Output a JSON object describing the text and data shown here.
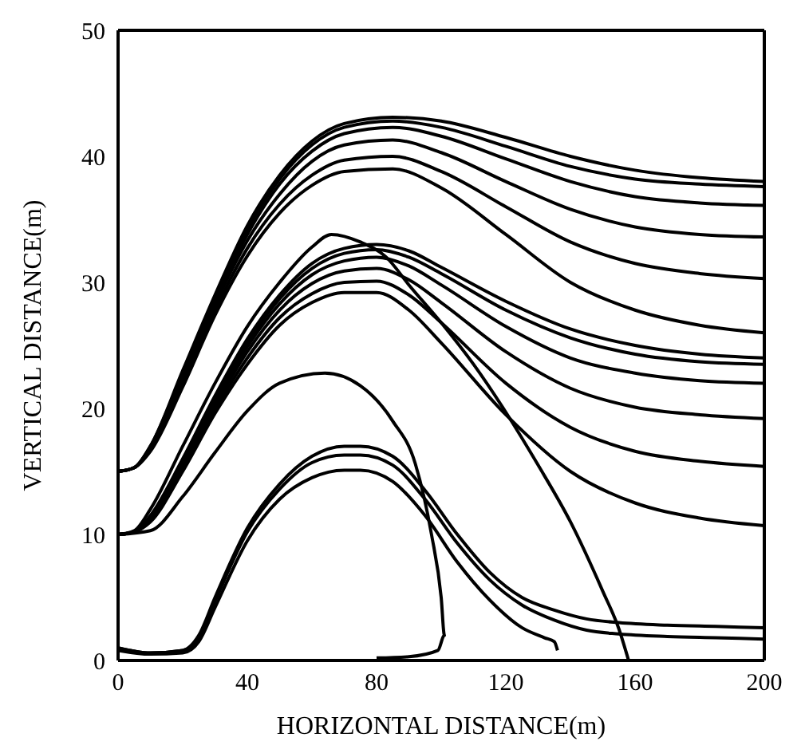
{
  "chart_data": {
    "type": "line",
    "xlabel": "HORIZONTAL DISTANCE(m)",
    "ylabel": "VERTICAL DISTANCE(m)",
    "xlim": [
      0,
      200
    ],
    "xticks": [
      0,
      40,
      80,
      120,
      160,
      200
    ],
    "ylim": [
      0,
      50
    ],
    "yticks": [
      0,
      10,
      20,
      30,
      40,
      50
    ],
    "grid": false,
    "marker": "none",
    "line_style": "solid",
    "series": [
      {
        "color": "#000000",
        "x": [
          0,
          5,
          10,
          20,
          30,
          40,
          50,
          60,
          70,
          85,
          100,
          120,
          140,
          160,
          180,
          200
        ],
        "values": [
          15,
          15.3,
          17,
          23,
          29,
          34.5,
          38.5,
          41.2,
          42.6,
          43.1,
          42.8,
          41.5,
          40.0,
          38.9,
          38.3,
          38.0
        ]
      },
      {
        "color": "#000000",
        "x": [
          0,
          5,
          10,
          20,
          30,
          40,
          50,
          60,
          70,
          85,
          100,
          120,
          140,
          160,
          180,
          200
        ],
        "values": [
          15,
          15.3,
          17,
          22.8,
          28.8,
          34.2,
          38.2,
          40.9,
          42.3,
          42.8,
          42.3,
          40.8,
          39.2,
          38.2,
          37.8,
          37.6
        ]
      },
      {
        "color": "#000000",
        "x": [
          0,
          5,
          10,
          20,
          30,
          40,
          50,
          60,
          70,
          85,
          100,
          120,
          140,
          160,
          180,
          200
        ],
        "values": [
          15,
          15.3,
          16.9,
          22.5,
          28.5,
          33.8,
          37.8,
          40.4,
          41.8,
          42.3,
          41.6,
          39.8,
          38.0,
          36.8,
          36.3,
          36.1
        ]
      },
      {
        "color": "#000000",
        "x": [
          0,
          5,
          10,
          20,
          30,
          40,
          50,
          60,
          70,
          85,
          100,
          120,
          140,
          160,
          180,
          200
        ],
        "values": [
          15,
          15.3,
          16.8,
          22.2,
          28.2,
          33.3,
          37.0,
          39.6,
          40.9,
          41.3,
          40.3,
          38.0,
          35.8,
          34.4,
          33.8,
          33.6
        ]
      },
      {
        "color": "#000000",
        "x": [
          0,
          5,
          10,
          20,
          30,
          40,
          50,
          60,
          70,
          85,
          100,
          120,
          140,
          160,
          180,
          200
        ],
        "values": [
          15,
          15.3,
          16.7,
          22,
          27.8,
          32.7,
          36.2,
          38.5,
          39.7,
          40.0,
          38.8,
          36.0,
          33.2,
          31.5,
          30.7,
          30.3
        ]
      },
      {
        "color": "#000000",
        "x": [
          0,
          5,
          10,
          20,
          30,
          40,
          50,
          60,
          70,
          85,
          100,
          120,
          140,
          160,
          180,
          200
        ],
        "values": [
          15,
          15.3,
          16.6,
          21.7,
          27.4,
          32.1,
          35.5,
          37.7,
          38.8,
          39.0,
          37.5,
          33.8,
          30.0,
          27.8,
          26.6,
          26.0
        ]
      },
      {
        "color": "#000000",
        "x": [
          0,
          5,
          10,
          20,
          30,
          40,
          50,
          60,
          70,
          80,
          90,
          100,
          120,
          140,
          160,
          180,
          200
        ],
        "values": [
          10,
          10.2,
          11.5,
          16,
          21,
          25.5,
          29,
          31.5,
          32.7,
          33.0,
          32.5,
          31.2,
          28.5,
          26.3,
          25,
          24.3,
          24.0
        ]
      },
      {
        "color": "#000000",
        "x": [
          0,
          5,
          10,
          20,
          30,
          40,
          50,
          60,
          70,
          80,
          90,
          100,
          120,
          140,
          160,
          180,
          200
        ],
        "values": [
          10,
          10.2,
          11.4,
          15.8,
          20.8,
          25.2,
          28.7,
          31.1,
          32.3,
          32.6,
          32.0,
          30.7,
          27.8,
          25.6,
          24.3,
          23.7,
          23.5
        ]
      },
      {
        "color": "#000000",
        "x": [
          0,
          5,
          10,
          20,
          30,
          40,
          50,
          60,
          70,
          80,
          90,
          100,
          120,
          140,
          160,
          180,
          200
        ],
        "values": [
          10,
          10.2,
          11.3,
          15.6,
          20.5,
          24.9,
          28.3,
          30.6,
          31.7,
          32.0,
          31.3,
          29.8,
          26.5,
          24.0,
          22.8,
          22.2,
          22.0
        ]
      },
      {
        "color": "#000000",
        "x": [
          0,
          5,
          10,
          20,
          30,
          40,
          50,
          60,
          70,
          80,
          90,
          100,
          120,
          140,
          160,
          180,
          200
        ],
        "values": [
          10,
          10.2,
          11.2,
          15.4,
          20.2,
          24.5,
          27.8,
          29.9,
          30.9,
          31.1,
          30.2,
          28.4,
          24.5,
          21.6,
          20.1,
          19.5,
          19.2
        ]
      },
      {
        "color": "#000000",
        "x": [
          0,
          5,
          10,
          20,
          30,
          40,
          50,
          60,
          70,
          80,
          90,
          100,
          120,
          140,
          160,
          180,
          200
        ],
        "values": [
          10,
          10.2,
          11.1,
          15.2,
          19.9,
          24.0,
          27.2,
          29.1,
          30.0,
          30.1,
          29.0,
          26.8,
          22.0,
          18.5,
          16.6,
          15.8,
          15.4
        ]
      },
      {
        "color": "#000000",
        "x": [
          0,
          5,
          10,
          20,
          30,
          40,
          50,
          60,
          70,
          80,
          90,
          100,
          120,
          140,
          160,
          180,
          200
        ],
        "values": [
          10,
          10.2,
          11,
          15,
          19.6,
          23.5,
          26.6,
          28.4,
          29.2,
          29.2,
          27.8,
          25.2,
          19.5,
          15.0,
          12.5,
          11.3,
          10.7
        ]
      },
      {
        "color": "#000000",
        "x": [
          0,
          5,
          10,
          20,
          30,
          40,
          50,
          60,
          66,
          75,
          83,
          90,
          100,
          110,
          120,
          130,
          140,
          150,
          155,
          158
        ],
        "values": [
          10,
          10.3,
          12,
          17,
          22,
          26.5,
          30,
          32.8,
          33.8,
          33.2,
          32,
          29.8,
          26.8,
          23.5,
          19.7,
          15.5,
          11,
          5.5,
          2.5,
          0
        ]
      },
      {
        "color": "#000000",
        "x": [
          0,
          10,
          20,
          30,
          40,
          50,
          64,
          75,
          85,
          92,
          97,
          100,
          101,
          99,
          90,
          80
        ],
        "values": [
          10,
          10.3,
          13,
          16.5,
          19.8,
          22,
          22.8,
          21.8,
          19,
          15.6,
          10,
          5,
          2,
          0.8,
          0.3,
          0.2
        ]
      },
      {
        "color": "#000000",
        "x": [
          0,
          10,
          20,
          25,
          30,
          40,
          50,
          60,
          70,
          75,
          85,
          95,
          105,
          115,
          125,
          135,
          145,
          155,
          170,
          185,
          200
        ],
        "values": [
          1,
          0.6,
          0.8,
          2,
          5,
          10.5,
          14,
          16.2,
          17,
          17,
          16.2,
          13.5,
          10,
          7,
          5,
          4,
          3.3,
          3,
          2.8,
          2.7,
          2.6
        ]
      },
      {
        "color": "#000000",
        "x": [
          0,
          10,
          20,
          25,
          30,
          40,
          50,
          60,
          70,
          75,
          85,
          95,
          105,
          115,
          125,
          135,
          145,
          155,
          170,
          185,
          200
        ],
        "values": [
          1,
          0.6,
          0.8,
          1.8,
          4.7,
          10.2,
          13.6,
          15.7,
          16.3,
          16.3,
          15.5,
          12.8,
          9.3,
          6.4,
          4.4,
          3.2,
          2.4,
          2.1,
          1.9,
          1.8,
          1.7
        ]
      },
      {
        "color": "#000000",
        "x": [
          0,
          10,
          20,
          25,
          30,
          40,
          50,
          60,
          70,
          75,
          85,
          95,
          105,
          115,
          125,
          132,
          135,
          136
        ],
        "values": [
          0.8,
          0.5,
          0.6,
          1.5,
          4.2,
          9.5,
          12.8,
          14.5,
          15.1,
          15.1,
          14.2,
          11.5,
          7.8,
          4.8,
          2.6,
          1.8,
          1.5,
          0.8
        ]
      }
    ]
  }
}
